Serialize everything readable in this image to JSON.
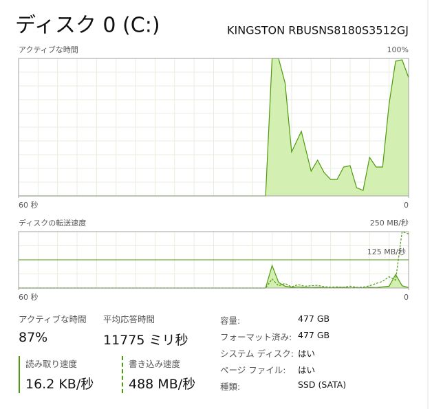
{
  "header": {
    "title": "ディスク 0 (C:)",
    "model": "KINGSTON RBUSNS8180S3512GJ"
  },
  "chart_data": [
    {
      "type": "area",
      "title": "アクティブな時間",
      "x": [
        60,
        22,
        21,
        20,
        19,
        18,
        16.5,
        15,
        14,
        13,
        12,
        11,
        10,
        9,
        8,
        7,
        6,
        5,
        4,
        3,
        2,
        1,
        0
      ],
      "series": [
        {
          "color": "#4d9a0b",
          "fill": "#d3efb1",
          "style": "solid",
          "values": [
            0,
            0,
            100,
            100,
            82,
            32,
            47,
            18,
            26,
            17,
            12,
            12,
            21,
            22,
            6,
            4,
            28,
            21,
            21,
            67,
            98,
            99,
            86
          ]
        }
      ],
      "xlim": [
        60,
        0
      ],
      "xticks": [
        {
          "value": 60,
          "label": "60 秒"
        },
        0
      ],
      "ylim": [
        0,
        100
      ],
      "yticks": [
        {
          "value": 100,
          "label": "100%"
        }
      ],
      "grid": true
    },
    {
      "type": "area",
      "title": "ディスクの転送速度",
      "x": [
        60,
        22,
        21,
        20,
        19,
        18,
        17,
        16,
        15,
        14,
        13,
        12,
        11,
        10,
        9,
        8,
        7,
        6,
        5,
        4,
        3,
        2,
        1,
        0
      ],
      "series": [
        {
          "color": "#4d9a0b",
          "fill": "#d3efb1",
          "style": "solid",
          "values": [
            0,
            0,
            100,
            25,
            8,
            3,
            5,
            3,
            2,
            4,
            2,
            1,
            2,
            3,
            1,
            2,
            1,
            3,
            2,
            5,
            8,
            60,
            10,
            2
          ]
        },
        {
          "color": "#4d9a0b",
          "fill": null,
          "style": "dashed",
          "values": [
            0,
            0,
            40,
            10,
            20,
            5,
            15,
            8,
            10,
            12,
            6,
            4,
            5,
            3,
            8,
            3,
            4,
            10,
            20,
            30,
            50,
            35,
            250,
            240
          ]
        }
      ],
      "xlim": [
        60,
        0
      ],
      "xticks": [
        {
          "value": 60,
          "label": "60 秒"
        },
        0
      ],
      "ylim": [
        0,
        250
      ],
      "yticks": [
        {
          "value": 125,
          "label": "125 MB/秒"
        },
        {
          "value": 250,
          "label": "250 MB/秒"
        }
      ],
      "grid": true
    }
  ],
  "stats": {
    "active_time": {
      "label": "アクティブな時間",
      "value": "87%"
    },
    "avg_response": {
      "label": "平均応答時間",
      "value": "11775 ミリ秒"
    },
    "read_speed": {
      "label": "読み取り速度",
      "value": "16.2 KB/秒"
    },
    "write_speed": {
      "label": "書き込み速度",
      "value": "488 MB/秒"
    }
  },
  "properties": [
    {
      "label": "容量:",
      "value": "477 GB"
    },
    {
      "label": "フォーマット済み:",
      "value": "477 GB"
    },
    {
      "label": "システム ディスク:",
      "value": "はい"
    },
    {
      "label": "ページ ファイル:",
      "value": "はい"
    },
    {
      "label": "種類:",
      "value": "SSD (SATA)"
    }
  ]
}
